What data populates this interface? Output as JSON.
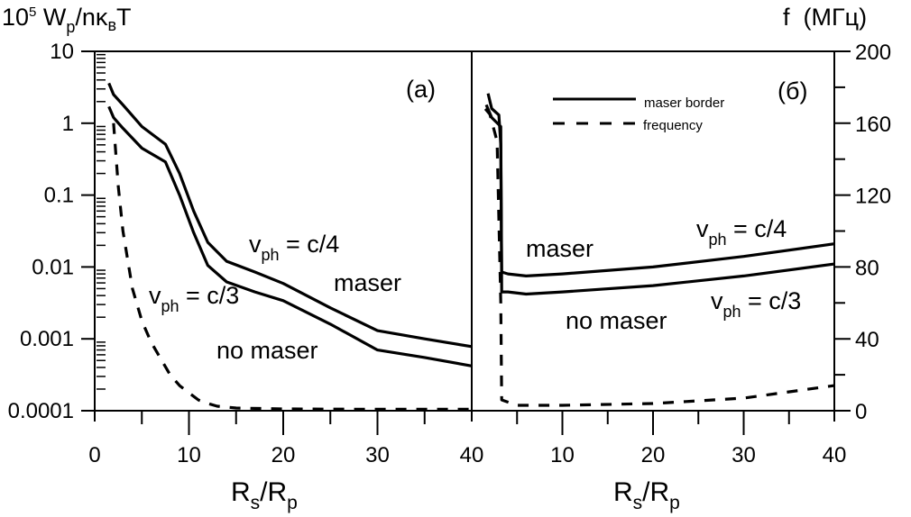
{
  "chart_data": [
    {
      "panel": "(a)",
      "type": "line",
      "xlabel": {
        "main": "R",
        "sub1": "s",
        "sep": "/R",
        "sub2": "p"
      },
      "ylabel": {
        "pre": "10",
        "sup": "5",
        "main": " W",
        "sub1": "p",
        "mid": "/nκ",
        "sub2": "в",
        "end": "T"
      },
      "yscale": "log",
      "xlim": [
        0,
        40
      ],
      "ylim": [
        0.0001,
        10
      ],
      "xticks": [
        0,
        10,
        20,
        30,
        40
      ],
      "yticks": [
        "0.0001",
        "0.001",
        "0.01",
        "0.1",
        "1",
        "10"
      ],
      "series": [
        {
          "name": "maser border v_ph = c/4",
          "style": "solid",
          "axis": "left",
          "points": [
            [
              1.5,
              3.6
            ],
            [
              2,
              2.5
            ],
            [
              3,
              1.8
            ],
            [
              5,
              0.9
            ],
            [
              7.5,
              0.51
            ],
            [
              9,
              0.2
            ],
            [
              10.5,
              0.06
            ],
            [
              12,
              0.022
            ],
            [
              14,
              0.012
            ],
            [
              17,
              0.0085
            ],
            [
              20,
              0.0059
            ],
            [
              25,
              0.0027
            ],
            [
              30,
              0.0013
            ],
            [
              35,
              0.001
            ],
            [
              40,
              0.00078
            ]
          ]
        },
        {
          "name": "maser border v_ph = c/3",
          "style": "solid",
          "axis": "left",
          "points": [
            [
              1.5,
              1.7
            ],
            [
              2,
              1.2
            ],
            [
              3,
              0.85
            ],
            [
              5,
              0.45
            ],
            [
              7.5,
              0.29
            ],
            [
              9,
              0.1
            ],
            [
              10.5,
              0.03
            ],
            [
              12,
              0.0105
            ],
            [
              14,
              0.0062
            ],
            [
              17,
              0.0045
            ],
            [
              20,
              0.0034
            ],
            [
              25,
              0.0016
            ],
            [
              30,
              0.0007
            ],
            [
              35,
              0.00055
            ],
            [
              40,
              0.00042
            ]
          ]
        },
        {
          "name": "frequency",
          "style": "dashed",
          "axis": "right",
          "points": [
            [
              2,
              160
            ],
            [
              2.5,
              125
            ],
            [
              3,
              100
            ],
            [
              4,
              68
            ],
            [
              5,
              50
            ],
            [
              6,
              38
            ],
            [
              7,
              29
            ],
            [
              8,
              20
            ],
            [
              9,
              14
            ],
            [
              10,
              10
            ],
            [
              11,
              6
            ],
            [
              12,
              4
            ],
            [
              13,
              2.5
            ],
            [
              15,
              1.5
            ],
            [
              20,
              1
            ],
            [
              30,
              0.8
            ],
            [
              40,
              0.8
            ]
          ]
        }
      ],
      "annotations": {
        "panel_label": "(a)",
        "c4": {
          "v": "v",
          "sub": "ph",
          "rest": " = c/4"
        },
        "c3": {
          "v": "v",
          "sub": "ph",
          "rest": " = c/3"
        },
        "maser": "maser",
        "no_maser": "no maser"
      }
    },
    {
      "panel": "(б)",
      "type": "line",
      "xlabel": {
        "main": "R",
        "sub1": "s",
        "sep": "/R",
        "sub2": "p"
      },
      "y2label": "f  (МГц)",
      "xlim": [
        0,
        40
      ],
      "y2lim": [
        0,
        200
      ],
      "xticks": [
        10,
        20,
        30,
        40
      ],
      "y2ticks": [
        "0",
        "40",
        "80",
        "120",
        "160",
        "200"
      ],
      "legend": {
        "position": "top-center",
        "entries": [
          "maser border",
          "frequency"
        ]
      },
      "series": [
        {
          "name": "maser border v_ph = c/4",
          "style": "solid",
          "axis": "left",
          "points": [
            [
              1.8,
              2.6
            ],
            [
              2.2,
              1.6
            ],
            [
              3.0,
              1.3
            ],
            [
              3.2,
              0.5
            ],
            [
              3.3,
              0.0085
            ],
            [
              4,
              0.008
            ],
            [
              6,
              0.0075
            ],
            [
              10,
              0.008
            ],
            [
              20,
              0.01
            ],
            [
              30,
              0.014
            ],
            [
              40,
              0.021
            ]
          ]
        },
        {
          "name": "maser border v_ph = c/3",
          "style": "solid",
          "axis": "left",
          "points": [
            [
              1.6,
              1.8
            ],
            [
              2.2,
              1.2
            ],
            [
              3.2,
              0.9
            ],
            [
              3.3,
              0.0045
            ],
            [
              4,
              0.0045
            ],
            [
              6,
              0.0042
            ],
            [
              10,
              0.0045
            ],
            [
              20,
              0.0055
            ],
            [
              30,
              0.0075
            ],
            [
              40,
              0.011
            ]
          ]
        },
        {
          "name": "frequency",
          "style": "dashed",
          "axis": "right",
          "points": [
            [
              1.5,
              168
            ],
            [
              2,
              165
            ],
            [
              2.8,
              150
            ],
            [
              3.2,
              60
            ],
            [
              3.3,
              6
            ],
            [
              5,
              3
            ],
            [
              10,
              3
            ],
            [
              20,
              4
            ],
            [
              30,
              7
            ],
            [
              40,
              14
            ]
          ]
        }
      ],
      "annotations": {
        "panel_label": "(б)",
        "c4": {
          "v": "v",
          "sub": "ph",
          "rest": " = c/4"
        },
        "c3": {
          "v": "v",
          "sub": "ph",
          "rest": " = c/3"
        },
        "maser": "maser",
        "no_maser": "no maser"
      }
    }
  ]
}
